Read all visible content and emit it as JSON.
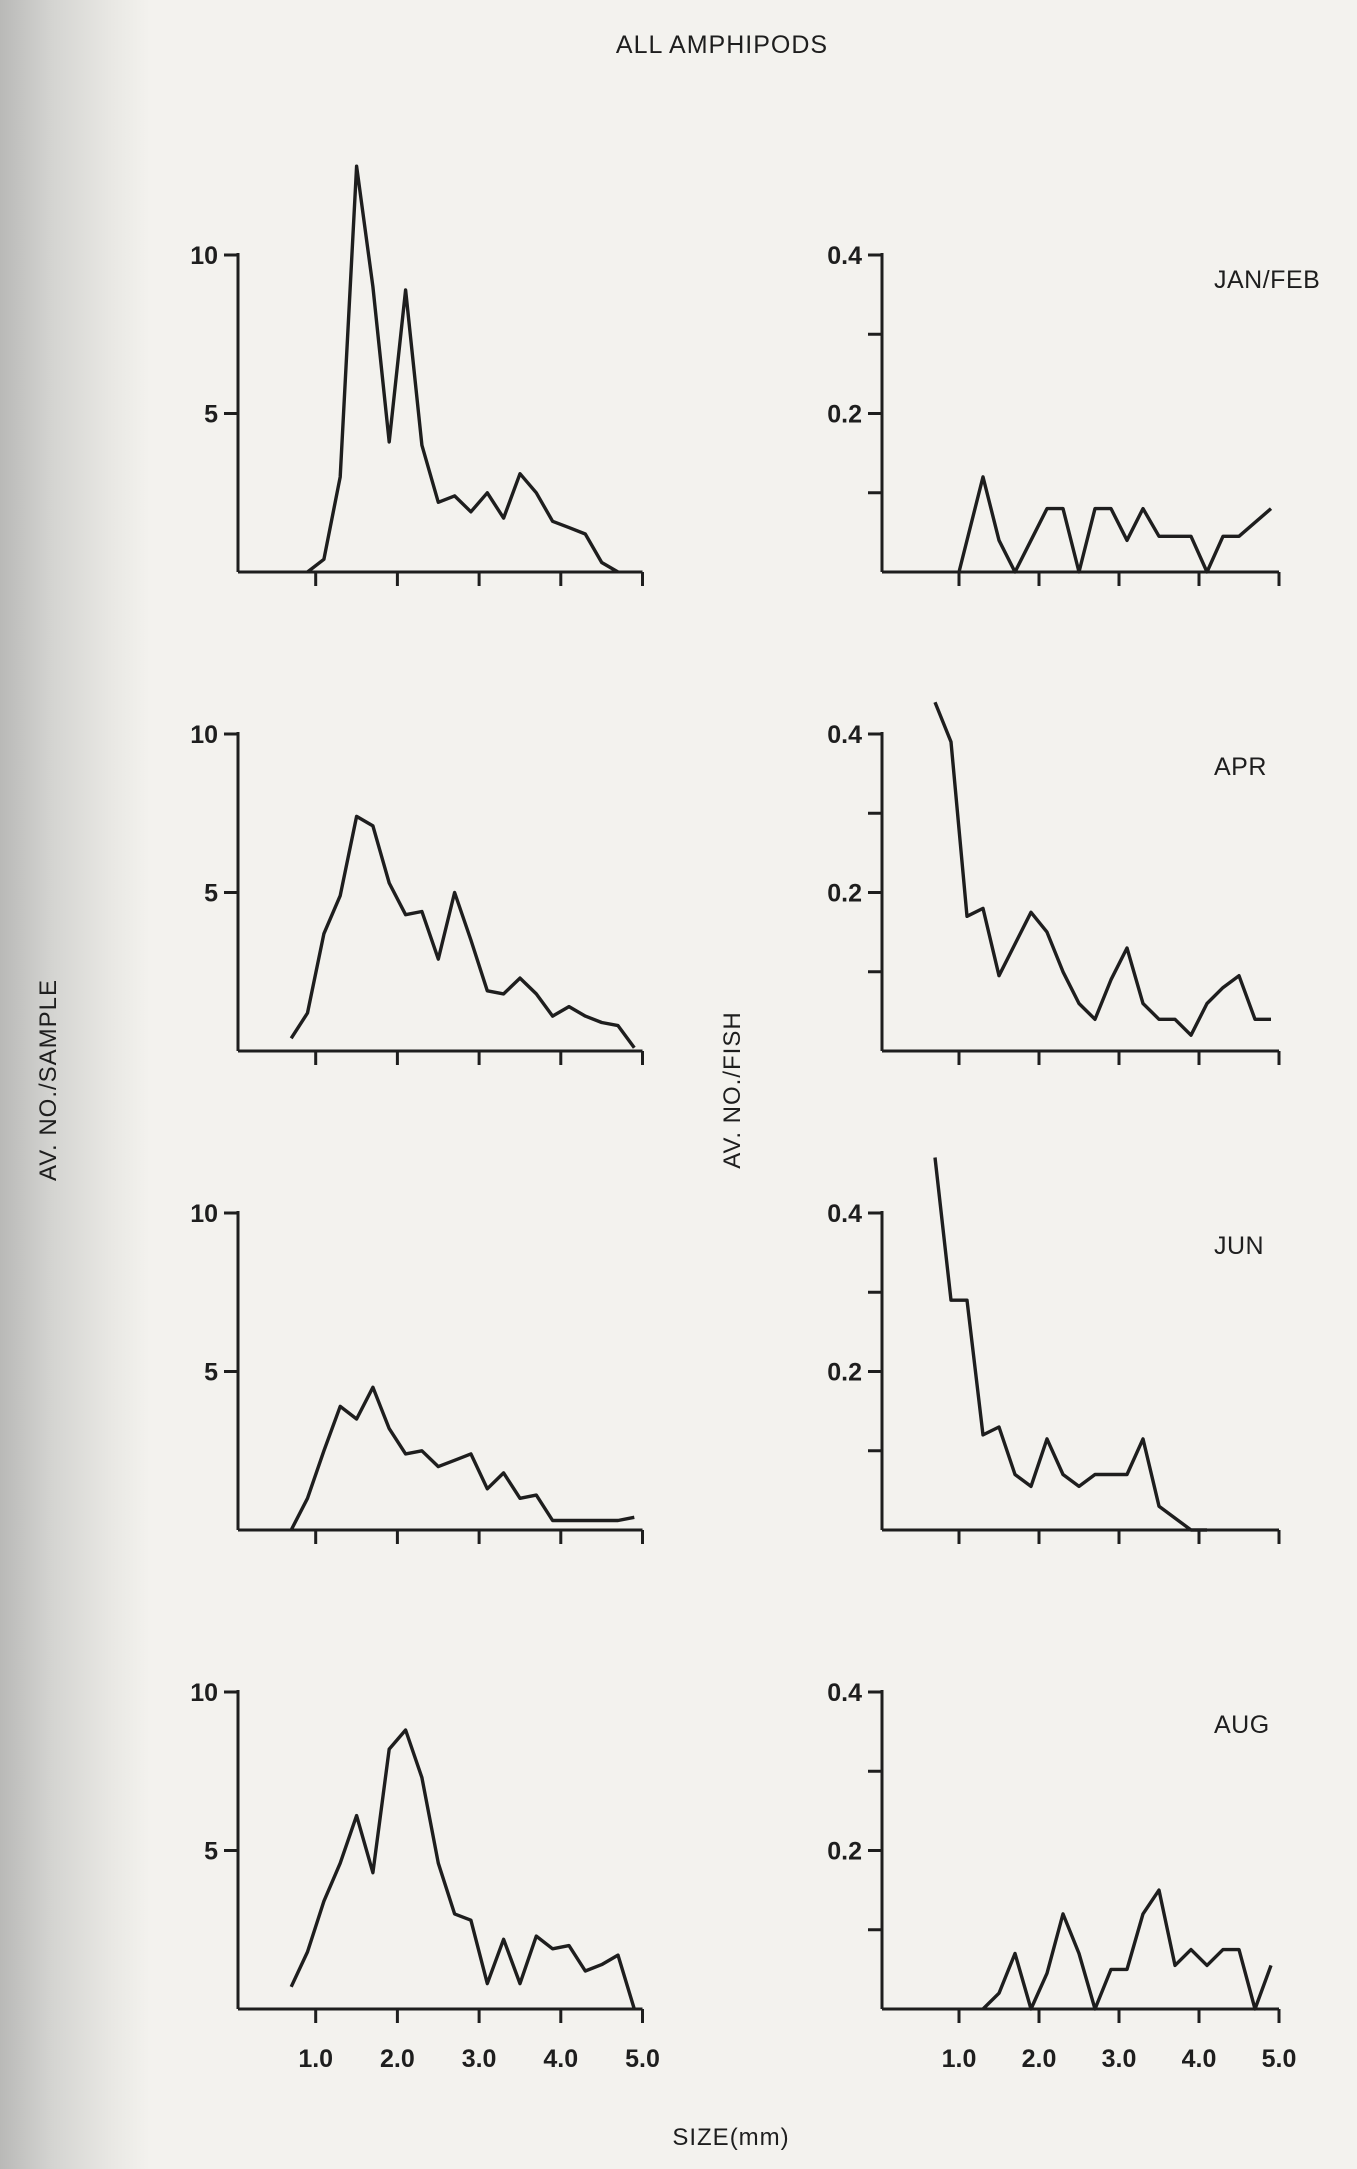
{
  "chart_data": {
    "type": "line",
    "title": "ALL AMPHIPODS",
    "xlabel": "SIZE(mm)",
    "ylabel_left": "AV. NO./SAMPLE",
    "ylabel_right": "AV. NO./FISH",
    "x_ticks": [
      1.0,
      2.0,
      3.0,
      4.0,
      5.0
    ],
    "x_tick_labels": [
      "1.0",
      "2.0",
      "3.0",
      "4.0",
      "5.0"
    ],
    "xlim": [
      0.0,
      5.0
    ],
    "left_ylim": [
      0,
      10
    ],
    "left_y_ticks": [
      5,
      10
    ],
    "left_y_tick_labels": [
      "5",
      "10"
    ],
    "right_ylim": [
      0,
      0.4
    ],
    "right_y_ticks": [
      0.1,
      0.2,
      0.3,
      0.4
    ],
    "right_y_tick_labels": [
      "",
      "0.2",
      "",
      "0.4"
    ],
    "months": [
      "JAN/FEB",
      "APR",
      "JUN",
      "AUG"
    ],
    "panels": [
      {
        "month": "JAN/FEB",
        "sample": [
          [
            0.9,
            0
          ],
          [
            1.1,
            0.4
          ],
          [
            1.3,
            3
          ],
          [
            1.5,
            12.8
          ],
          [
            1.7,
            9
          ],
          [
            1.9,
            4.1
          ],
          [
            2.1,
            8.9
          ],
          [
            2.3,
            4
          ],
          [
            2.5,
            2.2
          ],
          [
            2.7,
            2.4
          ],
          [
            2.9,
            1.9
          ],
          [
            3.1,
            2.5
          ],
          [
            3.3,
            1.7
          ],
          [
            3.5,
            3.1
          ],
          [
            3.7,
            2.5
          ],
          [
            3.9,
            1.6
          ],
          [
            4.1,
            1.4
          ],
          [
            4.3,
            1.2
          ],
          [
            4.5,
            0.3
          ],
          [
            4.7,
            0
          ]
        ],
        "fish": [
          [
            1.0,
            0
          ],
          [
            1.3,
            0.12
          ],
          [
            1.5,
            0.04
          ],
          [
            1.7,
            0
          ],
          [
            1.9,
            0.04
          ],
          [
            2.1,
            0.08
          ],
          [
            2.3,
            0.08
          ],
          [
            2.5,
            0
          ],
          [
            2.7,
            0.08
          ],
          [
            2.9,
            0.08
          ],
          [
            3.1,
            0.04
          ],
          [
            3.3,
            0.08
          ],
          [
            3.5,
            0.045
          ],
          [
            3.7,
            0.045
          ],
          [
            3.9,
            0.045
          ],
          [
            4.1,
            0
          ],
          [
            4.3,
            0.045
          ],
          [
            4.5,
            0.045
          ],
          [
            4.9,
            0.08
          ]
        ]
      },
      {
        "month": "APR",
        "sample": [
          [
            0.7,
            0.4
          ],
          [
            0.9,
            1.2
          ],
          [
            1.1,
            3.7
          ],
          [
            1.3,
            4.9
          ],
          [
            1.5,
            7.4
          ],
          [
            1.7,
            7.1
          ],
          [
            1.9,
            5.3
          ],
          [
            2.1,
            4.3
          ],
          [
            2.3,
            4.4
          ],
          [
            2.5,
            2.9
          ],
          [
            2.7,
            5
          ],
          [
            2.9,
            3.5
          ],
          [
            3.1,
            1.9
          ],
          [
            3.3,
            1.8
          ],
          [
            3.5,
            2.3
          ],
          [
            3.7,
            1.8
          ],
          [
            3.9,
            1.1
          ],
          [
            4.1,
            1.4
          ],
          [
            4.3,
            1.1
          ],
          [
            4.5,
            0.9
          ],
          [
            4.7,
            0.8
          ],
          [
            4.9,
            0.1
          ]
        ],
        "fish": [
          [
            0.7,
            0.44
          ],
          [
            0.9,
            0.39
          ],
          [
            1.1,
            0.17
          ],
          [
            1.3,
            0.18
          ],
          [
            1.5,
            0.095
          ],
          [
            1.7,
            0.135
          ],
          [
            1.9,
            0.175
          ],
          [
            2.1,
            0.15
          ],
          [
            2.3,
            0.1
          ],
          [
            2.5,
            0.06
          ],
          [
            2.7,
            0.04
          ],
          [
            2.9,
            0.09
          ],
          [
            3.1,
            0.13
          ],
          [
            3.3,
            0.06
          ],
          [
            3.5,
            0.04
          ],
          [
            3.7,
            0.04
          ],
          [
            3.9,
            0.02
          ],
          [
            4.1,
            0.06
          ],
          [
            4.3,
            0.08
          ],
          [
            4.5,
            0.095
          ],
          [
            4.7,
            0.04
          ],
          [
            4.9,
            0.04
          ]
        ]
      },
      {
        "month": "JUN",
        "sample": [
          [
            0.7,
            0
          ],
          [
            0.9,
            1
          ],
          [
            1.1,
            2.5
          ],
          [
            1.3,
            3.9
          ],
          [
            1.5,
            3.5
          ],
          [
            1.7,
            4.5
          ],
          [
            1.9,
            3.2
          ],
          [
            2.1,
            2.4
          ],
          [
            2.3,
            2.5
          ],
          [
            2.5,
            2
          ],
          [
            2.7,
            2.2
          ],
          [
            2.9,
            2.4
          ],
          [
            3.1,
            1.3
          ],
          [
            3.3,
            1.8
          ],
          [
            3.5,
            1
          ],
          [
            3.7,
            1.1
          ],
          [
            3.9,
            0.3
          ],
          [
            4.1,
            0.3
          ],
          [
            4.3,
            0.3
          ],
          [
            4.5,
            0.3
          ],
          [
            4.7,
            0.3
          ],
          [
            4.9,
            0.4
          ]
        ],
        "fish": [
          [
            0.7,
            0.47
          ],
          [
            0.9,
            0.29
          ],
          [
            1.1,
            0.29
          ],
          [
            1.3,
            0.12
          ],
          [
            1.5,
            0.13
          ],
          [
            1.7,
            0.07
          ],
          [
            1.9,
            0.055
          ],
          [
            2.1,
            0.115
          ],
          [
            2.3,
            0.07
          ],
          [
            2.5,
            0.055
          ],
          [
            2.7,
            0.07
          ],
          [
            2.9,
            0.07
          ],
          [
            3.1,
            0.07
          ],
          [
            3.3,
            0.115
          ],
          [
            3.5,
            0.03
          ],
          [
            3.7,
            0.015
          ],
          [
            3.9,
            0
          ],
          [
            4.1,
            0
          ]
        ]
      },
      {
        "month": "AUG",
        "sample": [
          [
            0.7,
            0.7
          ],
          [
            0.9,
            1.8
          ],
          [
            1.1,
            3.4
          ],
          [
            1.3,
            4.6
          ],
          [
            1.5,
            6.1
          ],
          [
            1.7,
            4.3
          ],
          [
            1.9,
            8.2
          ],
          [
            2.1,
            8.8
          ],
          [
            2.3,
            7.3
          ],
          [
            2.5,
            4.6
          ],
          [
            2.7,
            3
          ],
          [
            2.9,
            2.8
          ],
          [
            3.1,
            0.8
          ],
          [
            3.3,
            2.2
          ],
          [
            3.5,
            0.8
          ],
          [
            3.7,
            2.3
          ],
          [
            3.9,
            1.9
          ],
          [
            4.1,
            2
          ],
          [
            4.3,
            1.2
          ],
          [
            4.5,
            1.4
          ],
          [
            4.7,
            1.7
          ],
          [
            4.9,
            0
          ]
        ],
        "fish": [
          [
            1.3,
            0
          ],
          [
            1.5,
            0.02
          ],
          [
            1.7,
            0.07
          ],
          [
            1.9,
            0
          ],
          [
            2.1,
            0.045
          ],
          [
            2.3,
            0.12
          ],
          [
            2.5,
            0.07
          ],
          [
            2.7,
            0
          ],
          [
            2.9,
            0.05
          ],
          [
            3.1,
            0.05
          ],
          [
            3.3,
            0.12
          ],
          [
            3.5,
            0.15
          ],
          [
            3.7,
            0.055
          ],
          [
            3.9,
            0.075
          ],
          [
            4.1,
            0.055
          ],
          [
            4.3,
            0.075
          ],
          [
            4.5,
            0.075
          ],
          [
            4.7,
            0
          ],
          [
            4.9,
            0.055
          ]
        ]
      }
    ]
  }
}
